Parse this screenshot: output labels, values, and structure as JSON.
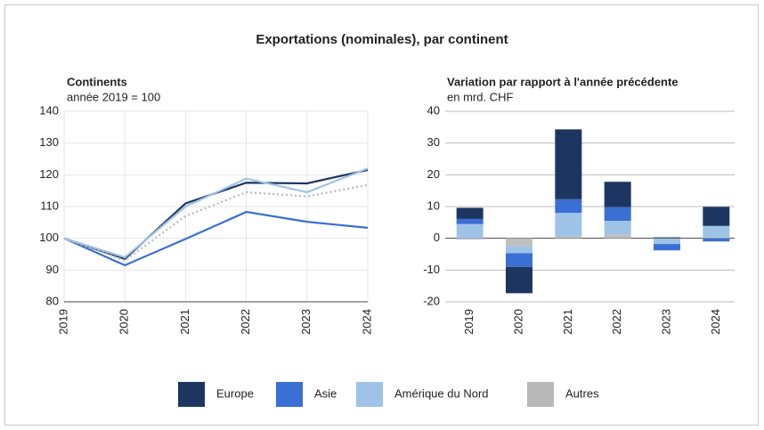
{
  "title": "Exportations (nominales), par continent",
  "chart_data": [
    {
      "type": "line",
      "title": "Continents",
      "subtitle": "année 2019 = 100",
      "categories": [
        "2019",
        "2020",
        "2021",
        "2022",
        "2023",
        "2024"
      ],
      "ylim": [
        80,
        140
      ],
      "yticks": [
        80,
        90,
        100,
        110,
        120,
        130,
        140
      ],
      "grid": true,
      "series": [
        {
          "name": "Europe",
          "color": "#1d3661",
          "values": [
            100,
            93.5,
            111,
            117.5,
            117.3,
            121.5
          ]
        },
        {
          "name": "Asie",
          "color": "#3a6fd4",
          "values": [
            100,
            91.5,
            99.8,
            108.3,
            105.2,
            103.3
          ]
        },
        {
          "name": "Amérique du Nord",
          "color": "#9fc3e7",
          "values": [
            100,
            94,
            110,
            118.8,
            114.5,
            122
          ]
        },
        {
          "name": "Autres",
          "color": "#b8b8b8",
          "style": "dotted",
          "values": [
            100,
            93,
            107,
            114.5,
            113.2,
            116.8
          ]
        }
      ]
    },
    {
      "type": "stacked-bar",
      "title": "Variation par rapport à l'année précédente",
      "subtitle": "en mrd. CHF",
      "categories": [
        "2019",
        "2020",
        "2021",
        "2022",
        "2023",
        "2024"
      ],
      "ylim": [
        -20,
        40
      ],
      "yticks": [
        -20,
        -10,
        0,
        10,
        20,
        30,
        40
      ],
      "grid": true,
      "series": [
        {
          "color": "#c0c0c0",
          "values": [
            -0.4,
            -2.5,
            0.5,
            1.2,
            -0.2,
            0.3
          ]
        },
        {
          "color": "#9fc3e7",
          "values": [
            4.5,
            -2.2,
            7.5,
            4.3,
            -1.6,
            3.6
          ]
        },
        {
          "color": "#3a6fd4",
          "values": [
            1.6,
            -4.3,
            4.3,
            4.3,
            -2,
            -1
          ]
        },
        {
          "color": "#1d3661",
          "values": [
            3.5,
            -8.3,
            22,
            8,
            0.3,
            6
          ]
        }
      ]
    }
  ]
}
